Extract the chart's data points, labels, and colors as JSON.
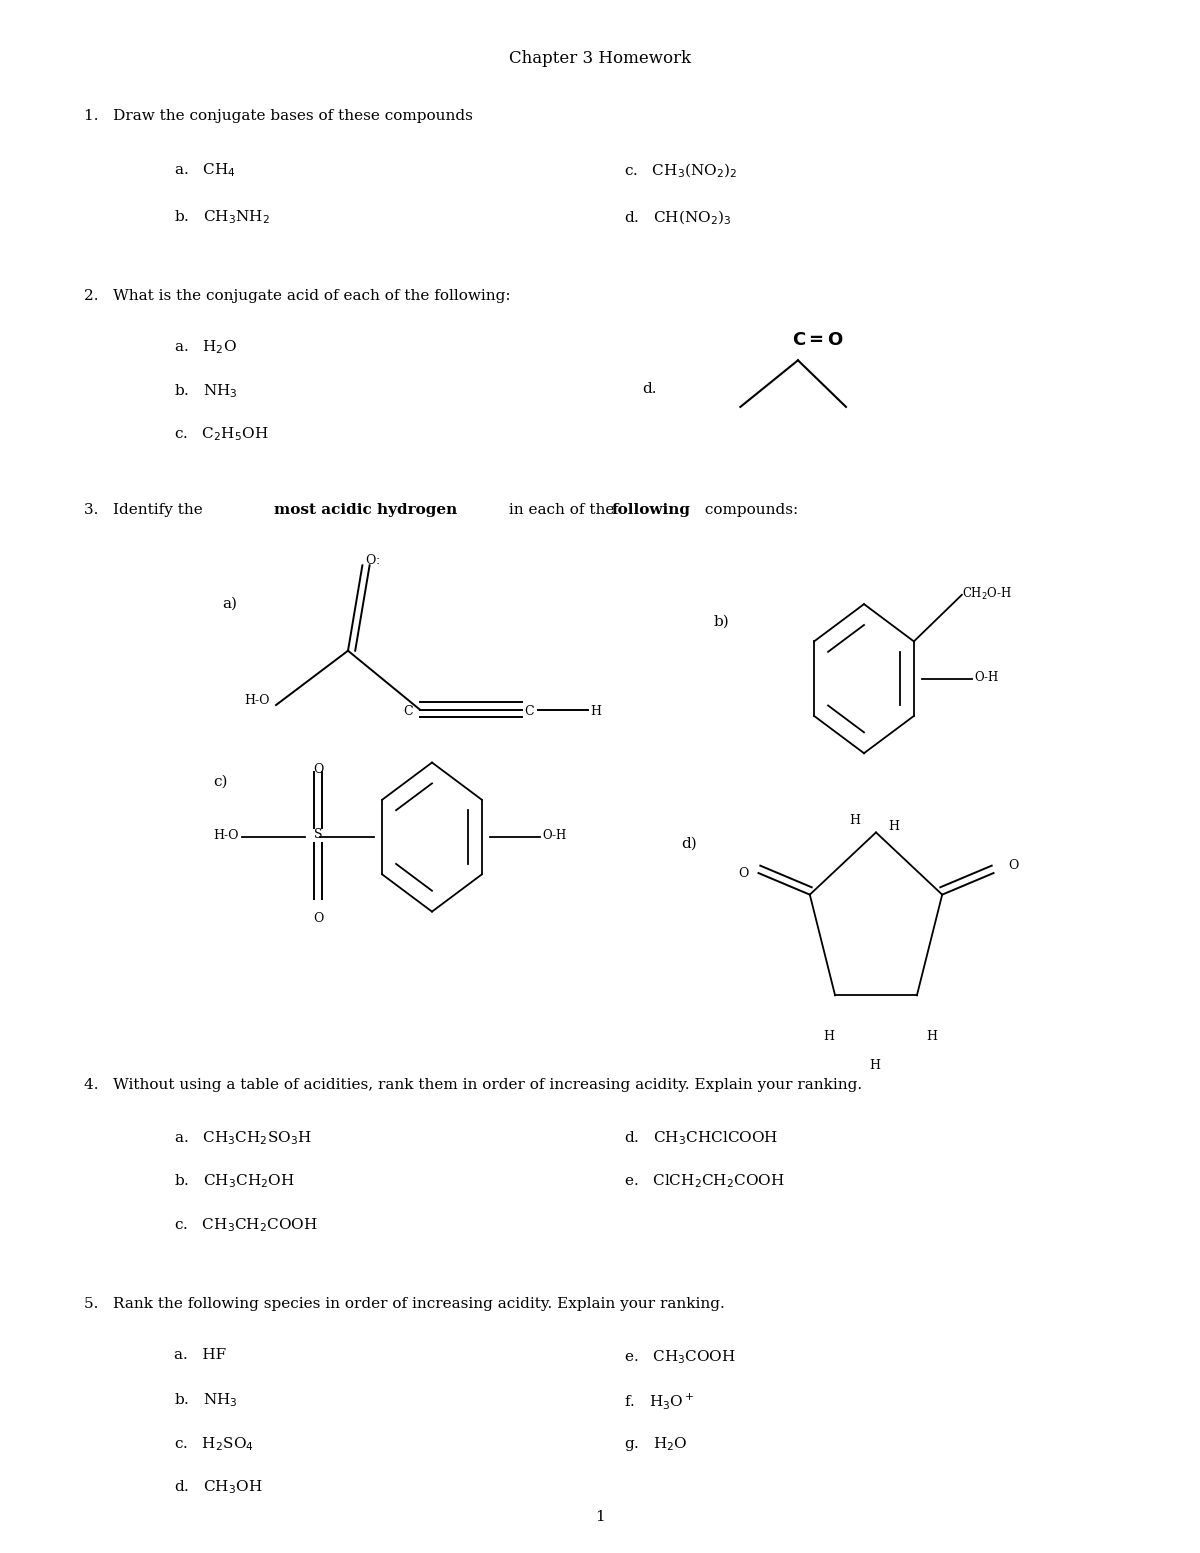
{
  "title": "Chapter 3 Homework",
  "background_color": "#ffffff",
  "text_color": "#000000",
  "q1_header": "1.   Draw the conjugate bases of these compounds",
  "q1_a": "a.   CH$_4$",
  "q1_b": "b.   CH$_3$NH$_2$",
  "q1_c": "c.   CH$_3$(NO$_2$)$_2$",
  "q1_d": "d.   CH(NO$_2$)$_3$",
  "q2_header": "2.   What is the conjugate acid of each of the following:",
  "q2_a": "a.   H$_2$O",
  "q2_b": "b.   NH$_3$",
  "q2_c": "c.   C$_2$H$_5$OH",
  "q2_d": "d.",
  "q3_header_pre": "3.   Identify the ",
  "q3_bold1": "most acidic hydrogen",
  "q3_mid": " in each of the ",
  "q3_bold2": "following",
  "q3_post": " compounds:",
  "q4_header": "4.   Without using a table of acidities, rank them in order of increasing acidity. Explain your ranking.",
  "q4_a": "a.   CH$_3$CH$_2$SO$_3$H",
  "q4_b": "b.   CH$_3$CH$_2$OH",
  "q4_c": "c.   CH$_3$CH$_2$COOH",
  "q4_d": "d.   CH$_3$CHClCOOH",
  "q4_e": "e.   ClCH$_2$CH$_2$COOH",
  "q5_header": "5.   Rank the following species in order of increasing acidity. Explain your ranking.",
  "q5_a": "a.   HF",
  "q5_b": "b.   NH$_3$",
  "q5_c": "c.   H$_2$SO$_4$",
  "q5_d": "d.   CH$_3$OH",
  "q5_e": "e.   CH$_3$COOH",
  "q5_f": "f.   H$_3$O$^+$",
  "q5_g": "g.   H$_2$O",
  "page_num": "1"
}
